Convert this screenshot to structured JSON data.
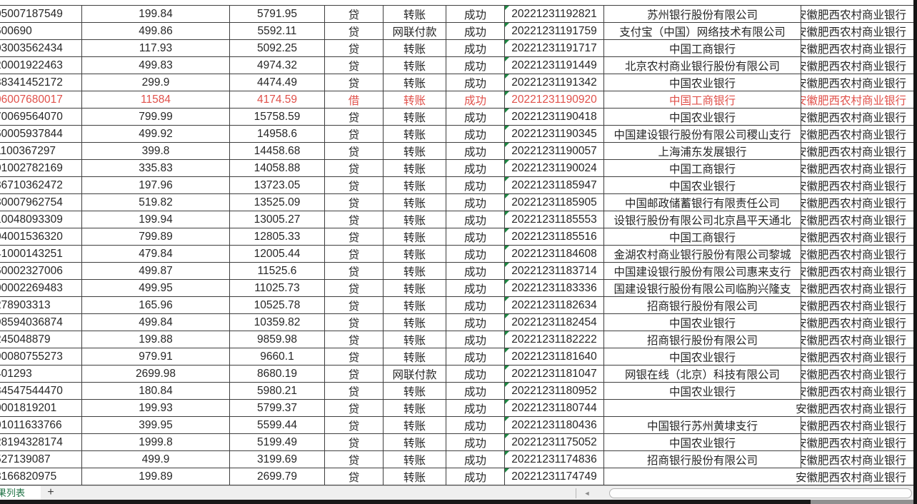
{
  "app": {
    "type": "spreadsheet-transaction-list"
  },
  "colors": {
    "red_row_text": "#e0504a",
    "indicator_triangle_green": "#1f8a44",
    "sheet_tab_text_green": "#217346",
    "grid_border": "#3f3f3f"
  },
  "sheet_tabs": {
    "active_label": "果列表",
    "add_button": "+"
  },
  "scrollbar": {
    "left_arrow": "◄"
  },
  "grid": {
    "columns": [
      "account_number",
      "amount",
      "balance",
      "debit_credit",
      "transaction_type",
      "status",
      "timestamp",
      "counterparty_bank",
      "account_bank"
    ],
    "own_bank_text": "安徽肥西农村商业银行",
    "rows": [
      {
        "account": "05007187549",
        "amount": "199.84",
        "balance": "5791.95",
        "drcr": "贷",
        "method": "转账",
        "status": "成功",
        "time": "20221231192821",
        "bank": "苏州银行股份有限公司",
        "own": "安徽肥西农村商业银行",
        "red": false,
        "own_overflow": false
      },
      {
        "account": "600690",
        "amount": "499.86",
        "balance": "5592.11",
        "drcr": "贷",
        "method": "网联付款",
        "status": "成功",
        "time": "20221231191759",
        "bank": "支付宝（中国）网络技术有限公司",
        "own": "安徽肥西农村商业银行",
        "red": false,
        "own_overflow": false
      },
      {
        "account": "03003562434",
        "amount": "117.93",
        "balance": "5092.25",
        "drcr": "贷",
        "method": "转账",
        "status": "成功",
        "time": "20221231191717",
        "bank": "中国工商银行",
        "own": "安徽肥西农村商业银行",
        "red": false,
        "own_overflow": false
      },
      {
        "account": "20001922463",
        "amount": "499.83",
        "balance": "4974.32",
        "drcr": "贷",
        "method": "转账",
        "status": "成功",
        "time": "20221231191449",
        "bank": "北京农村商业银行股份有限公司",
        "own": "安徽肥西农村商业银行",
        "red": false,
        "own_overflow": false
      },
      {
        "account": "38341452172",
        "amount": "299.9",
        "balance": "4474.49",
        "drcr": "贷",
        "method": "转账",
        "status": "成功",
        "time": "20221231191342",
        "bank": "中国农业银行",
        "own": "安徽肥西农村商业银行",
        "red": false,
        "own_overflow": false
      },
      {
        "account": "06007680017",
        "amount": "11584",
        "balance": "4174.59",
        "drcr": "借",
        "method": "转账",
        "status": "成功",
        "time": "20221231190920",
        "bank": "中国工商银行",
        "own": "安徽肥西农村商业银行",
        "red": true,
        "own_overflow": false
      },
      {
        "account": "70069564070",
        "amount": "799.99",
        "balance": "15758.59",
        "drcr": "贷",
        "method": "转账",
        "status": "成功",
        "time": "20221231190418",
        "bank": "中国农业银行",
        "own": "安徽肥西农村商业银行",
        "red": false,
        "own_overflow": false
      },
      {
        "account": "60005937844",
        "amount": "499.92",
        "balance": "14958.6",
        "drcr": "贷",
        "method": "转账",
        "status": "成功",
        "time": "20221231190345",
        "bank": "中国建设银行股份有限公司稷山支行",
        "own": "安徽肥西农村商业银行",
        "red": false,
        "own_overflow": false
      },
      {
        "account": "1100367297",
        "amount": "399.8",
        "balance": "14458.68",
        "drcr": "贷",
        "method": "转账",
        "status": "成功",
        "time": "20221231190057",
        "bank": "上海浦东发展银行",
        "own": "安徽肥西农村商业银行",
        "red": false,
        "own_overflow": false
      },
      {
        "account": "01002782169",
        "amount": "335.83",
        "balance": "14058.88",
        "drcr": "贷",
        "method": "转账",
        "status": "成功",
        "time": "20221231190024",
        "bank": "中国工商银行",
        "own": "安徽肥西农村商业银行",
        "red": false,
        "own_overflow": false
      },
      {
        "account": "86710362472",
        "amount": "197.96",
        "balance": "13723.05",
        "drcr": "贷",
        "method": "转账",
        "status": "成功",
        "time": "20221231185947",
        "bank": "中国农业银行",
        "own": "安徽肥西农村商业银行",
        "red": false,
        "own_overflow": false
      },
      {
        "account": "80007962754",
        "amount": "519.82",
        "balance": "13525.09",
        "drcr": "贷",
        "method": "转账",
        "status": "成功",
        "time": "20221231185905",
        "bank": "中国邮政储蓄银行有限责任公司",
        "own": "安徽肥西农村商业银行",
        "red": false,
        "own_overflow": false
      },
      {
        "account": "10048093309",
        "amount": "199.94",
        "balance": "13005.27",
        "drcr": "贷",
        "method": "转账",
        "status": "成功",
        "time": "20221231185553",
        "bank": "设银行股份有限公司北京昌平天通北",
        "own": "安徽肥西农村商业银行",
        "red": false,
        "own_overflow": false
      },
      {
        "account": "04001536320",
        "amount": "799.89",
        "balance": "12805.33",
        "drcr": "贷",
        "method": "转账",
        "status": "成功",
        "time": "20221231185516",
        "bank": "中国工商银行",
        "own": "安徽肥西农村商业银行",
        "red": false,
        "own_overflow": false
      },
      {
        "account": "41000143251",
        "amount": "479.84",
        "balance": "12005.44",
        "drcr": "贷",
        "method": "转账",
        "status": "成功",
        "time": "20221231184608",
        "bank": "金湖农村商业银行股份有限公司黎城",
        "own": "安徽肥西农村商业银行",
        "red": false,
        "own_overflow": false
      },
      {
        "account": "60002327006",
        "amount": "499.87",
        "balance": "11525.6",
        "drcr": "贷",
        "method": "转账",
        "status": "成功",
        "time": "20221231183714",
        "bank": "中国建设银行股份有限公司惠来支行",
        "own": "安徽肥西农村商业银行",
        "red": false,
        "own_overflow": false
      },
      {
        "account": "00002269483",
        "amount": "499.95",
        "balance": "11025.73",
        "drcr": "贷",
        "method": "转账",
        "status": "成功",
        "time": "20221231183336",
        "bank": "国建设银行股份有限公司临朐兴隆支",
        "own": "安徽肥西农村商业银行",
        "red": false,
        "own_overflow": false
      },
      {
        "account": "278903313",
        "amount": "165.96",
        "balance": "10525.78",
        "drcr": "贷",
        "method": "转账",
        "status": "成功",
        "time": "20221231182634",
        "bank": "招商银行股份有限公司",
        "own": "安徽肥西农村商业银行",
        "red": false,
        "own_overflow": false
      },
      {
        "account": "98594036874",
        "amount": "499.84",
        "balance": "10359.82",
        "drcr": "贷",
        "method": "转账",
        "status": "成功",
        "time": "20221231182454",
        "bank": "中国农业银行",
        "own": "安徽肥西农村商业银行",
        "red": false,
        "own_overflow": false
      },
      {
        "account": "245048879",
        "amount": "199.88",
        "balance": "9859.98",
        "drcr": "贷",
        "method": "转账",
        "status": "成功",
        "time": "20221231182222",
        "bank": "招商银行股份有限公司",
        "own": "安徽肥西农村商业银行",
        "red": false,
        "own_overflow": false
      },
      {
        "account": "90080755273",
        "amount": "979.91",
        "balance": "9660.1",
        "drcr": "贷",
        "method": "转账",
        "status": "成功",
        "time": "20221231181640",
        "bank": "中国农业银行",
        "own": "安徽肥西农村商业银行",
        "red": false,
        "own_overflow": false
      },
      {
        "account": "401293",
        "amount": "2699.98",
        "balance": "8680.19",
        "drcr": "贷",
        "method": "网联付款",
        "status": "成功",
        "time": "20221231181047",
        "bank": "网银在线（北京）科技有限公司",
        "own": "安徽肥西农村商业银行",
        "red": false,
        "own_overflow": false
      },
      {
        "account": "84547544470",
        "amount": "180.84",
        "balance": "5980.21",
        "drcr": "贷",
        "method": "转账",
        "status": "成功",
        "time": "20221231180952",
        "bank": "中国农业银行",
        "own": "安徽肥西农村商业银行",
        "red": false,
        "own_overflow": false
      },
      {
        "account": "0001819201",
        "amount": "199.93",
        "balance": "5799.37",
        "drcr": "贷",
        "method": "转账",
        "status": "成功",
        "time": "20221231180744",
        "bank": "",
        "own": "安徽肥西农村商业银行",
        "red": false,
        "own_overflow": true
      },
      {
        "account": "01011633766",
        "amount": "399.95",
        "balance": "5599.44",
        "drcr": "贷",
        "method": "转账",
        "status": "成功",
        "time": "20221231180436",
        "bank": "中国银行苏州黄埭支行",
        "own": "安徽肥西农村商业银行",
        "red": false,
        "own_overflow": false
      },
      {
        "account": "28194328174",
        "amount": "1999.8",
        "balance": "5199.49",
        "drcr": "贷",
        "method": "转账",
        "status": "成功",
        "time": "20221231175052",
        "bank": "中国农业银行",
        "own": "安徽肥西农村商业银行",
        "red": false,
        "own_overflow": false
      },
      {
        "account": "527139087",
        "amount": "499.9",
        "balance": "3199.69",
        "drcr": "贷",
        "method": "转账",
        "status": "成功",
        "time": "20221231174836",
        "bank": "招商银行股份有限公司",
        "own": "安徽肥西农村商业银行",
        "red": false,
        "own_overflow": false
      },
      {
        "account": "8166820975",
        "amount": "199.89",
        "balance": "2699.79",
        "drcr": "贷",
        "method": "转账",
        "status": "成功",
        "time": "20221231174749",
        "bank": "",
        "own": "安徽肥西农村商业银行",
        "red": false,
        "own_overflow": true
      }
    ]
  }
}
